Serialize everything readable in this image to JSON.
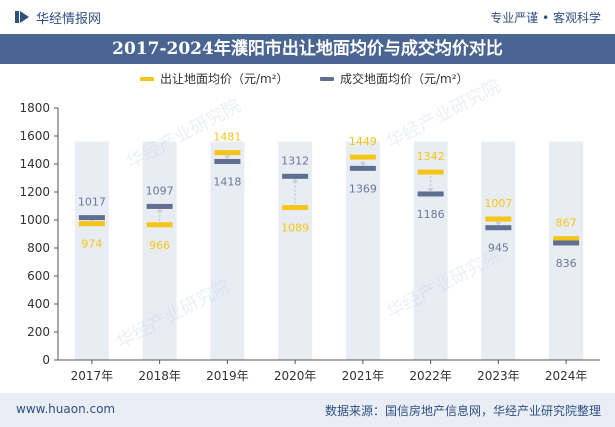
{
  "header": {
    "brand": "华经情报网",
    "tagline": "专业严谨 • 客观科学"
  },
  "colors": {
    "series1": "#f5c518",
    "series2": "#5f6f91",
    "band": "#e8ecf3",
    "title_bg": "#4a6592",
    "label1": "#f5c518",
    "label2": "#6b7a99"
  },
  "watermarks": [
    "华经产业研究院",
    "华经产业研究院",
    "华经产业研究院",
    "华经产业研究院"
  ],
  "footer": {
    "website": "www.huaon.com",
    "source": "数据来源：国信房地产信息网，华经产业研究院整理"
  },
  "chart_data": {
    "type": "dumbbell",
    "title": "2017-2024年濮阳市出让地面均价与成交均价对比",
    "categories": [
      "2017年",
      "2018年",
      "2019年",
      "2020年",
      "2021年",
      "2022年",
      "2023年",
      "2024年"
    ],
    "series": [
      {
        "name": "出让地面均价（元/m²）",
        "values": [
          974,
          966,
          1481,
          1089,
          1449,
          1342,
          1007,
          867
        ]
      },
      {
        "name": "成交地面均价（元/m²）",
        "values": [
          1017,
          1097,
          1418,
          1312,
          1369,
          1186,
          945,
          836
        ]
      }
    ],
    "ylim": [
      0,
      1800
    ],
    "yticks": [
      "0",
      "200",
      "400",
      "600",
      "800",
      "1000",
      "1200",
      "1400",
      "1600",
      "1800"
    ],
    "band_max": 1560,
    "xlabel": "",
    "ylabel": ""
  }
}
